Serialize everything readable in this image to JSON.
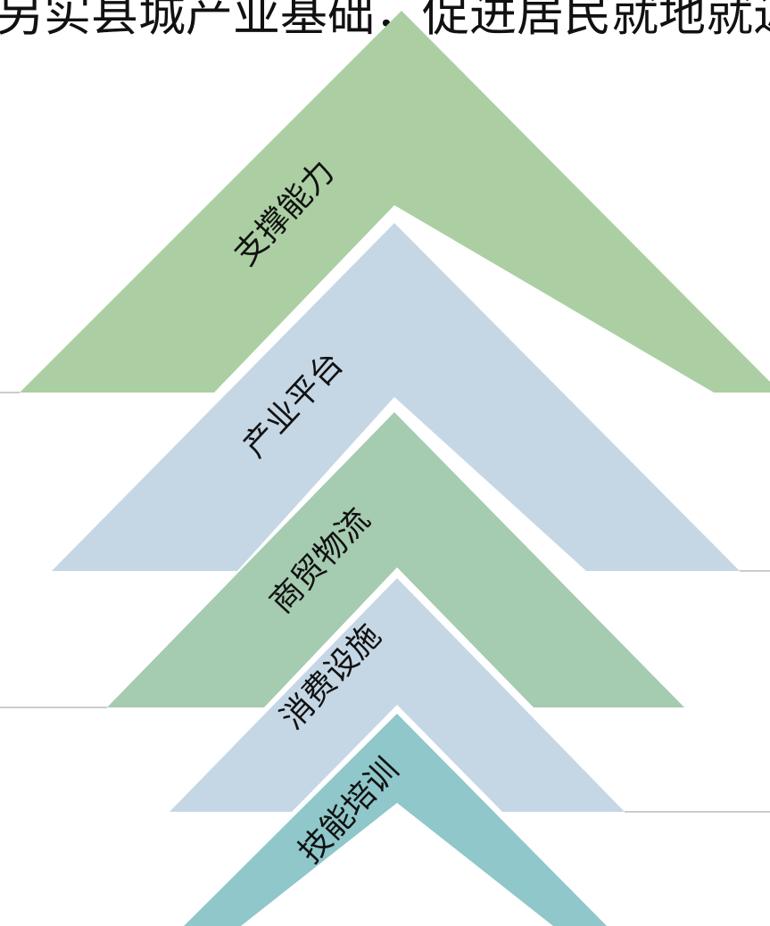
{
  "title_partial": "另实县城产业基础，促进居民就地就近就",
  "diagram": {
    "layers": [
      {
        "label": "支撑能力",
        "color": "#abcfa3"
      },
      {
        "label": "产业平台",
        "color": "#c5d7e5"
      },
      {
        "label": "商贸物流",
        "color": "#a5cbb0"
      },
      {
        "label": "消费设施",
        "color": "#c5d7e5"
      },
      {
        "label": "技能培训",
        "color": "#8fc7ca"
      }
    ],
    "divider_color": "#cccccc"
  }
}
